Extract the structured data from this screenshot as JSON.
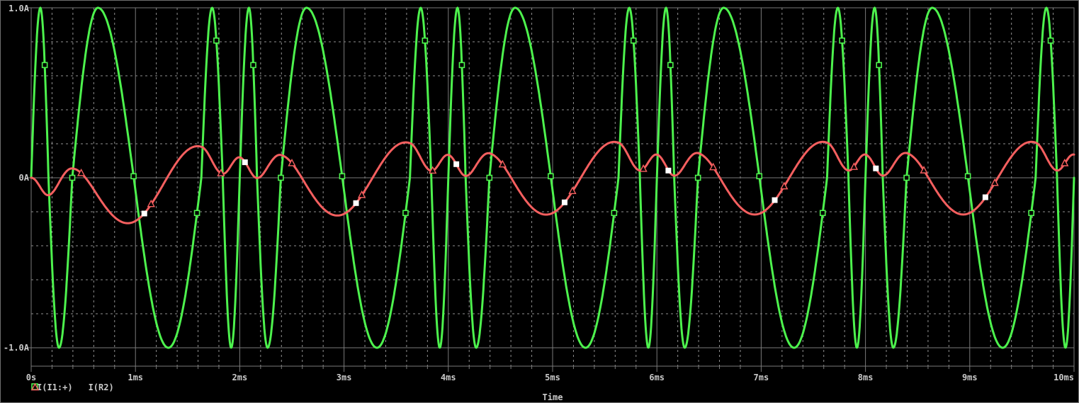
{
  "window": {
    "background": "#000000",
    "border_color": "#6f6f6f"
  },
  "colors": {
    "trace1_green": "#4df24d",
    "trace2_red": "#f55f5f",
    "grid_solid": "#7a7a7a",
    "grid_dashed": "#8f8f8f",
    "axis_text": "#c9c9c9",
    "white_marker": "#ffffff",
    "marker_fill": "#000000"
  },
  "labels": {
    "yticks": [
      "1.0A",
      "0A",
      "-1.0A"
    ],
    "xticks": [
      "0s",
      "1ms",
      "2ms",
      "3ms",
      "4ms",
      "5ms",
      "6ms",
      "7ms",
      "8ms",
      "9ms",
      "10ms"
    ],
    "xlabel": "Time"
  },
  "chart_data": {
    "type": "line",
    "title": "",
    "xlabel": "Time",
    "x_unit": "ms",
    "xlim": [
      0,
      10
    ],
    "ylim": [
      -1.0,
      1.0
    ],
    "ylim_box": [
      -1.108,
      1.0
    ],
    "x_tick_values_ms": [
      0,
      1,
      2,
      3,
      4,
      5,
      6,
      7,
      8,
      9,
      10
    ],
    "y_tick_values_A": [
      1.0,
      0,
      -1.0
    ],
    "x_minor_step_ms": 0.2,
    "y_minor_step_A": 0.2,
    "grid": "dotted minor grid every 0.2 units; solid lines at integer ms, 0A, +/-1.0A and plot border",
    "legend_position": "bottom-left",
    "legend": [
      {
        "symbol": "square",
        "color": "#4df24d",
        "label": "I(I1:+)"
      },
      {
        "symbol": "triangle",
        "color": "#f55f5f",
        "label": "I(R2)"
      }
    ],
    "series": [
      {
        "name": "I(I1:+)",
        "color": "#4df24d",
        "marker": "open-square",
        "description": "Single-frequency FM current source, amplitude 1.0 A, average carrier 1.5 kHz, modulation 500 Hz (pattern repeats every 2 ms; fast ~3 kHz near even ms, slow ~0.75 kHz between)",
        "amplitude_A": 1.0,
        "period_ms": 2.0,
        "phase_anchor_times_ms": [
          0,
          0.088,
          0.166,
          0.267,
          0.394,
          0.64,
          0.984,
          1.316,
          1.632,
          1.735,
          1.837,
          1.918
        ],
        "phase_step_per_anchor": "quarter cycle (pi/2); value = sin(phase)",
        "marker_times_ms": [
          0.13,
          0.394,
          0.982,
          1.59,
          1.776,
          2.13,
          2.394,
          2.982,
          3.59,
          3.776,
          4.13,
          4.394,
          4.982,
          5.59,
          5.776,
          6.13,
          6.394,
          6.982,
          7.59,
          7.776,
          8.13,
          8.394,
          8.982,
          9.59,
          9.776
        ]
      },
      {
        "name": "I(R2)",
        "color": "#f55f5f",
        "marker": "open-triangle",
        "description": "Filtered response of the FM source: inverted first-order low-pass, tau = 0.95 ms, starts at 0 A; swings about -0.27 A to +0.21 A, period 2 ms",
        "filter_tau_ms": 0.95,
        "initial_value_A": 0,
        "peak_pos_A": 0.21,
        "peak_neg_A": -0.27,
        "marker_times_ms": [
          0.48,
          1.15,
          1.82,
          2.5,
          3.17,
          3.85,
          4.52,
          5.19,
          5.87,
          6.54,
          7.22,
          7.89,
          8.56,
          9.24,
          9.91
        ],
        "white_square_marker_times_ms": [
          1.085,
          2.05,
          3.115,
          4.077,
          5.115,
          6.11,
          7.13,
          8.1,
          9.15
        ]
      }
    ]
  }
}
